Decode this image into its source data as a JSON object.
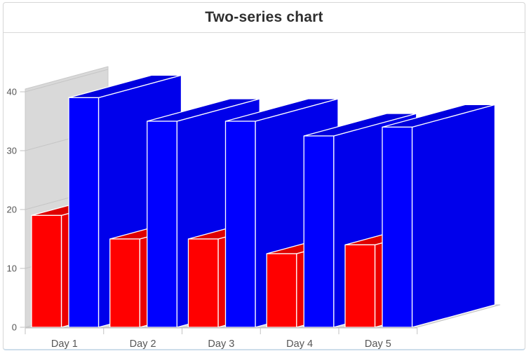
{
  "panel": {
    "title_label": "Two-series chart"
  },
  "chart_data": {
    "type": "bar",
    "three_d": true,
    "title": "Two-series chart",
    "categories": [
      "Day 1",
      "Day 2",
      "Day 3",
      "Day 4",
      "Day 5"
    ],
    "series": [
      {
        "name": "red",
        "color": "#ff0000",
        "values": [
          19,
          15,
          15,
          12.5,
          14
        ]
      },
      {
        "name": "blue",
        "color": "#0000ff",
        "values": [
          39,
          35,
          35,
          32.5,
          34
        ]
      }
    ],
    "xlabel": "",
    "ylabel": "",
    "ylim": [
      0,
      40
    ],
    "yticks": [
      0,
      10,
      20,
      30,
      40
    ],
    "grid": true,
    "legend": "none",
    "wall_color": "#d9d9d9",
    "axis_color": "#c2c2c2",
    "gridline_color": "#c6c6c6",
    "tick_label_color": "#565656",
    "bar_outline_color": "#ffffff"
  }
}
